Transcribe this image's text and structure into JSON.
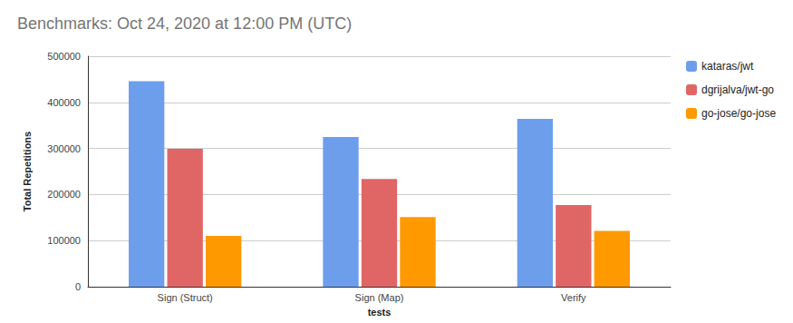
{
  "chart_data": {
    "type": "bar",
    "title": "Benchmarks: Oct 24, 2020 at 12:00 PM (UTC)",
    "x_label": "tests",
    "y_label": "Total Repetitions",
    "categories": [
      "Sign (Struct)",
      "Sign (Map)",
      "Verify"
    ],
    "series": [
      {
        "name": "kataras/jwt",
        "color": "#6d9eeb",
        "values": [
          446000,
          325000,
          364000
        ]
      },
      {
        "name": "dgrijalva/jwt-go",
        "color": "#e06666",
        "values": [
          299000,
          234000,
          177000
        ]
      },
      {
        "name": "go-jose/go-jose",
        "color": "#ff9900",
        "values": [
          110000,
          151000,
          121000
        ]
      }
    ],
    "ylim": [
      0,
      500000
    ],
    "yticks": [
      0,
      100000,
      200000,
      300000,
      400000,
      500000
    ],
    "grid": true,
    "legend": "right"
  }
}
